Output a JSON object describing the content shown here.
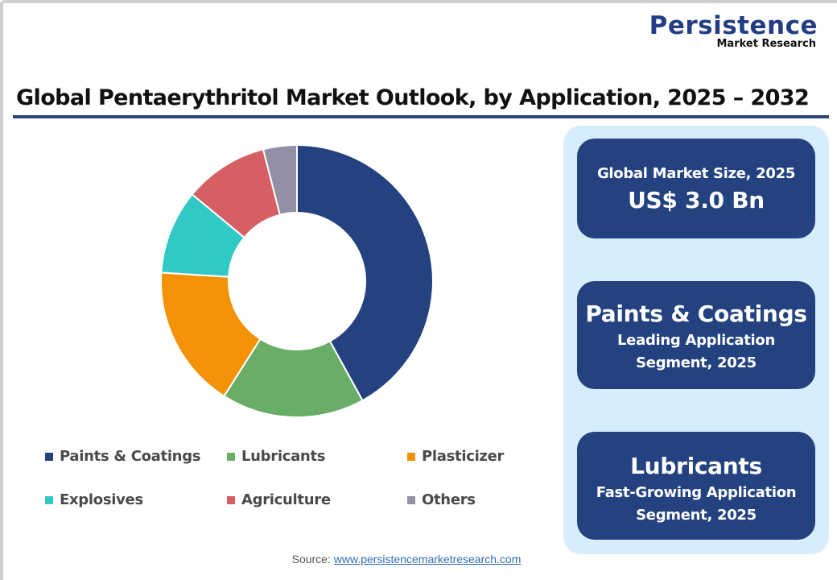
{
  "branding": {
    "logo_main": "Persistence",
    "logo_sub": "Market Research"
  },
  "header": {
    "title": "Global Pentaerythritol Market Outlook, by Application, 2025 – 2032"
  },
  "chart_data": {
    "type": "pie",
    "variant": "donut",
    "title": "Global Pentaerythritol Market Outlook, by Application, 2025 – 2032",
    "categories": [
      "Paints & Coatings",
      "Lubricants",
      "Plasticizer",
      "Explosives",
      "Agriculture",
      "Others"
    ],
    "values": [
      42,
      17,
      17,
      10,
      10,
      4
    ],
    "unit": "% share (estimated from slice angles)",
    "colors": [
      "#24427f",
      "#6aad66",
      "#f39207",
      "#31c9c6",
      "#d65f63",
      "#9390a5"
    ],
    "start_angle": "12 o'clock, clockwise",
    "legend_position": "bottom"
  },
  "legend": {
    "items": [
      {
        "label": "Paints & Coatings",
        "color": "#24427f"
      },
      {
        "label": "Lubricants",
        "color": "#6aad66"
      },
      {
        "label": "Plasticizer",
        "color": "#f39207"
      },
      {
        "label": "Explosives",
        "color": "#31c9c6"
      },
      {
        "label": "Agriculture",
        "color": "#d65f63"
      },
      {
        "label": "Others",
        "color": "#9390a5"
      }
    ]
  },
  "cards": [
    {
      "line1": "Global Market Size, 2025",
      "line2": "US$ 3.0 Bn"
    },
    {
      "line1": "Paints & Coatings",
      "line2": "Leading Application",
      "line3": "Segment, 2025"
    },
    {
      "line1": "Lubricants",
      "line2": "Fast-Growing Application",
      "line3": "Segment, 2025"
    }
  ],
  "footer": {
    "source_label": "Source: ",
    "source_link": "www.persistencemarketresearch.com"
  }
}
